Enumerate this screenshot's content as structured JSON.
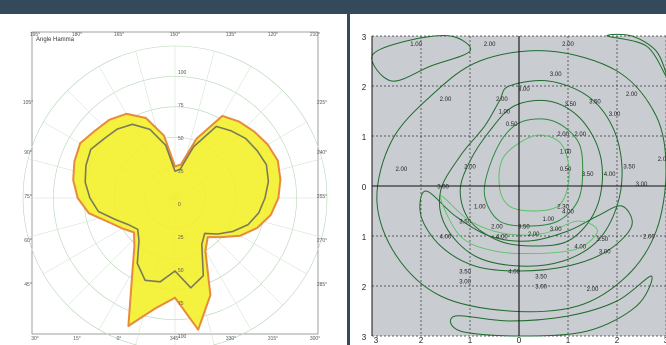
{
  "chart_data": [
    {
      "type": "polar",
      "title": "Angle Hamma",
      "theta_labels": [
        "180°",
        "165°",
        "150°",
        "135°",
        "120°",
        "105°",
        "90°",
        "75°",
        "60°",
        "45°",
        "30°",
        "15°",
        "0°",
        "345°",
        "330°",
        "315°",
        "300°",
        "285°",
        "270°",
        "255°",
        "240°",
        "225°",
        "210°",
        "195°"
      ],
      "radial_labels": [
        "100",
        "75",
        "50",
        "25",
        "0",
        "25",
        "50",
        "75",
        "100"
      ],
      "grid": true,
      "series": [
        {
          "name": "",
          "color": "#e88a3c",
          "fill": "#f4ef2a",
          "theta": [
            0,
            10,
            20,
            30,
            40,
            50,
            60,
            70,
            80,
            90,
            100,
            110,
            120,
            130,
            140,
            150,
            160,
            170,
            180,
            190,
            200,
            210,
            220,
            230,
            240,
            250,
            260,
            270,
            280,
            290,
            300,
            310,
            320,
            330,
            340,
            350
          ],
          "r": [
            26,
            28,
            52,
            78,
            82,
            85,
            88,
            90,
            88,
            85,
            80,
            72,
            62,
            50,
            42,
            50,
            85,
            110,
            82,
            92,
            112,
            70,
            52,
            44,
            50,
            58,
            72,
            80,
            85,
            88,
            90,
            86,
            84,
            80,
            70,
            52
          ]
        },
        {
          "name": "",
          "color": "#7a7a5a",
          "fill": "none",
          "theta": [
            0,
            10,
            20,
            30,
            40,
            50,
            60,
            70,
            80,
            90,
            100,
            110,
            120,
            130,
            140,
            150,
            160,
            170,
            180,
            190,
            200,
            210,
            220,
            230,
            240,
            250,
            260,
            270,
            280,
            290,
            300,
            310,
            320,
            330,
            340,
            350
          ],
          "r": [
            22,
            24,
            45,
            68,
            72,
            76,
            78,
            80,
            78,
            74,
            70,
            64,
            55,
            46,
            38,
            44,
            68,
            75,
            60,
            70,
            72,
            62,
            46,
            40,
            44,
            52,
            64,
            70,
            75,
            78,
            80,
            76,
            74,
            70,
            60,
            44
          ]
        }
      ]
    },
    {
      "type": "contour",
      "xlim": [
        -3,
        3
      ],
      "ylim": [
        -3,
        3
      ],
      "x_ticks": [
        "3",
        "2",
        "1",
        "0",
        "1",
        "2",
        "3"
      ],
      "y_ticks": [
        "3",
        "2",
        "1",
        "0",
        "1",
        "2",
        "3"
      ],
      "grid": true,
      "background": "#c9ccd0",
      "levels": [
        {
          "label": "1.00",
          "x": -2.1,
          "y": 2.8
        },
        {
          "label": "2.00",
          "x": -0.6,
          "y": 2.8
        },
        {
          "label": "2.00",
          "x": 1.0,
          "y": 2.8
        },
        {
          "label": "3.00",
          "x": 0.75,
          "y": 2.2
        },
        {
          "label": "2.00",
          "x": -1.5,
          "y": 1.7
        },
        {
          "label": "2.00",
          "x": -0.35,
          "y": 1.7
        },
        {
          "label": "1.00",
          "x": -0.3,
          "y": 1.45
        },
        {
          "label": "3.00",
          "x": 0.1,
          "y": 1.9
        },
        {
          "label": "3.50",
          "x": 1.05,
          "y": 1.6
        },
        {
          "label": "3.50",
          "x": 1.55,
          "y": 1.65
        },
        {
          "label": "3.00",
          "x": 1.95,
          "y": 1.4
        },
        {
          "label": "2.00",
          "x": 2.3,
          "y": 1.8
        },
        {
          "label": "0.50",
          "x": -0.15,
          "y": 1.2
        },
        {
          "label": "2.00",
          "x": 0.9,
          "y": 1.0
        },
        {
          "label": "2.00",
          "x": 1.25,
          "y": 1.0
        },
        {
          "label": "1.00",
          "x": 0.95,
          "y": 0.65
        },
        {
          "label": "0.50",
          "x": 0.95,
          "y": 0.3
        },
        {
          "label": "2.00",
          "x": -2.4,
          "y": 0.3
        },
        {
          "label": "2.00",
          "x": -1.0,
          "y": 0.35
        },
        {
          "label": "3.00",
          "x": -1.55,
          "y": -0.05
        },
        {
          "label": "3.50",
          "x": 1.4,
          "y": 0.2
        },
        {
          "label": "4.00",
          "x": 1.85,
          "y": 0.2
        },
        {
          "label": "3.50",
          "x": 2.25,
          "y": 0.35
        },
        {
          "label": "3.00",
          "x": 2.5,
          "y": 0.0
        },
        {
          "label": "2.00",
          "x": 2.95,
          "y": 0.5
        },
        {
          "label": "1.00",
          "x": -0.8,
          "y": -0.45
        },
        {
          "label": "3.50",
          "x": -1.1,
          "y": -0.75
        },
        {
          "label": "2.00",
          "x": -0.45,
          "y": -0.85
        },
        {
          "label": "3.50",
          "x": 0.1,
          "y": -0.85
        },
        {
          "label": "1.00",
          "x": 0.6,
          "y": -0.7
        },
        {
          "label": "2.30",
          "x": 0.9,
          "y": -0.45
        },
        {
          "label": "4.00",
          "x": 1.0,
          "y": -0.55
        },
        {
          "label": "4.00",
          "x": -1.5,
          "y": -1.05
        },
        {
          "label": "4.00",
          "x": -0.35,
          "y": -1.05
        },
        {
          "label": "2.00",
          "x": 0.3,
          "y": -1.0
        },
        {
          "label": "3.00",
          "x": 0.75,
          "y": -0.9
        },
        {
          "label": "4.00",
          "x": 1.25,
          "y": -1.25
        },
        {
          "label": "3.50",
          "x": 1.7,
          "y": -1.1
        },
        {
          "label": "3.00",
          "x": 1.75,
          "y": -1.35
        },
        {
          "label": "2.00",
          "x": 2.65,
          "y": -1.05
        },
        {
          "label": "3.50",
          "x": -1.1,
          "y": -1.75
        },
        {
          "label": "3.00",
          "x": -1.1,
          "y": -1.95
        },
        {
          "label": "4.00",
          "x": -0.1,
          "y": -1.75
        },
        {
          "label": "3.50",
          "x": 0.45,
          "y": -1.85
        },
        {
          "label": "3.00",
          "x": 0.45,
          "y": -2.05
        },
        {
          "label": "2.00",
          "x": 1.5,
          "y": -2.1
        }
      ]
    }
  ]
}
